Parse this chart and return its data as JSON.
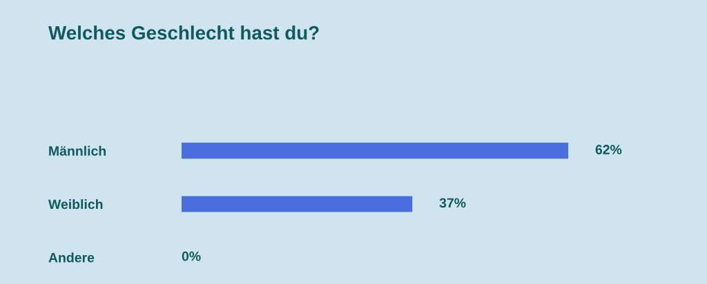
{
  "chart_data": {
    "type": "bar",
    "orientation": "horizontal",
    "title": "Welches Geschlecht hast du?",
    "categories": [
      "Männlich",
      "Weiblich",
      "Andere"
    ],
    "values": [
      62,
      37,
      0
    ],
    "value_labels": [
      "62%",
      "37%",
      "0%"
    ],
    "color": "#4a6fdc",
    "grid": false,
    "legend": false
  }
}
